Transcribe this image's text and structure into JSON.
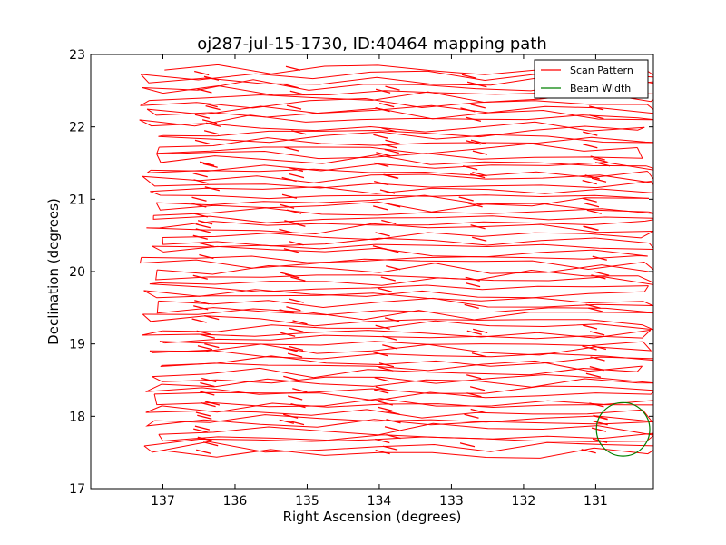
{
  "chart_data": {
    "type": "line",
    "title": "oj287-jul-15-1730, ID:40464 mapping path",
    "xlabel": "Right Ascension (degrees)",
    "ylabel": "Declination (degrees)",
    "xlim": [
      138.0,
      130.2
    ],
    "ylim": [
      17,
      23
    ],
    "x_inverted": true,
    "xticks": [
      137,
      136,
      135,
      134,
      133,
      132,
      131
    ],
    "yticks": [
      17,
      18,
      19,
      20,
      21,
      22,
      23
    ],
    "grid": false,
    "legend_position": "top-right",
    "series": [
      {
        "name": "Scan Pattern",
        "color": "#ff0000",
        "style": "raster",
        "ra_range": [
          137.15,
          130.25
        ],
        "dec_range": [
          17.48,
          22.78
        ],
        "row_count": 68
      },
      {
        "name": "Beam Width",
        "color": "#008000",
        "shape": "circle",
        "center": [
          130.62,
          17.82
        ],
        "radius_deg": 0.37
      }
    ]
  }
}
